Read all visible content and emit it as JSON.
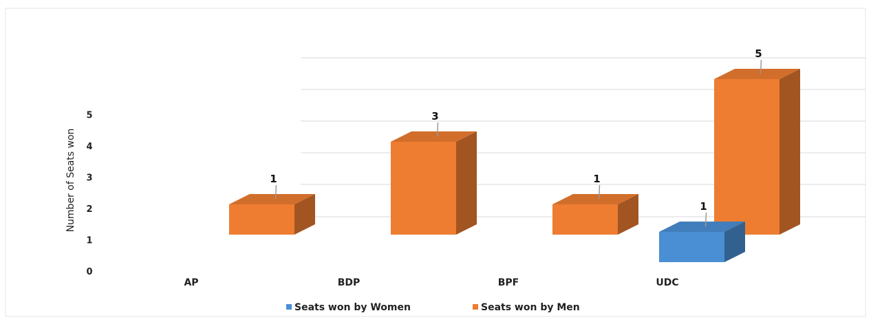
{
  "chart_data": {
    "type": "bar",
    "categories": [
      "AP",
      "BDP",
      "BPF",
      "UDC"
    ],
    "ylabel": "Number of Seats won",
    "yticks": [
      0,
      1,
      2,
      3,
      4,
      5
    ],
    "series": [
      {
        "name": "Seats won by Women",
        "values": [
          null,
          null,
          null,
          1
        ],
        "color": "#4a8fd4"
      },
      {
        "name": "Seats won by Men",
        "values": [
          1,
          3,
          1,
          5
        ],
        "color": "#ee7d31"
      }
    ],
    "grid": true,
    "legend": "bottom"
  }
}
